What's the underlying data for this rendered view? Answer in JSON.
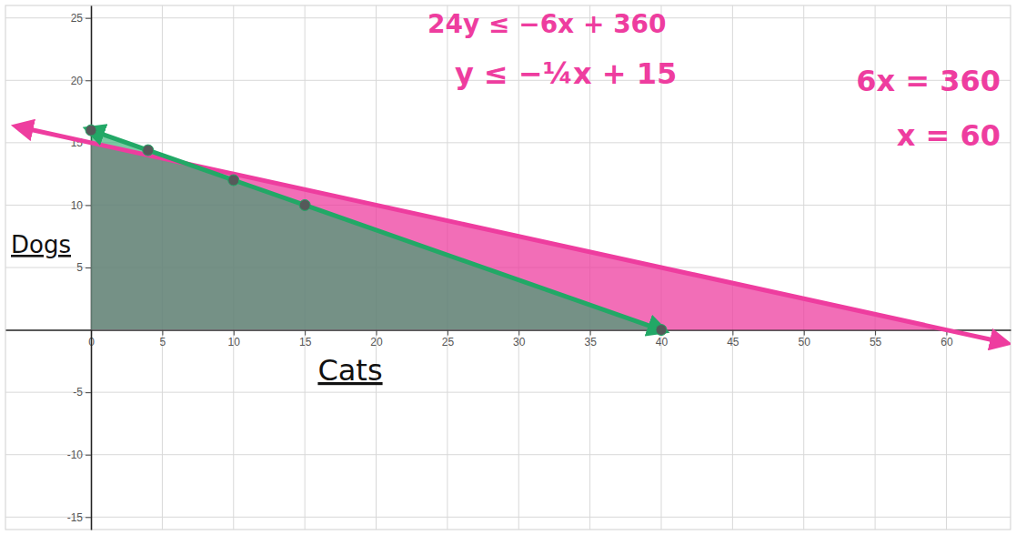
{
  "chart_data": {
    "type": "line",
    "x_label": "Cats",
    "y_label": "Dogs",
    "annotations": [
      "24y ≤ −6x + 360",
      "y ≤ −¼x + 15",
      "6x = 360",
      "x = 60"
    ],
    "xlim": [
      -6,
      64.5
    ],
    "ylim": [
      -16,
      26
    ],
    "xticks": [
      0,
      5,
      10,
      15,
      20,
      25,
      30,
      35,
      40,
      45,
      50,
      55,
      60
    ],
    "yticks": [
      -15,
      -10,
      -5,
      5,
      10,
      15,
      20,
      25
    ],
    "grid": true,
    "series": [
      {
        "type": "area",
        "color": "#ee3d9f",
        "x": [
          -5,
          0,
          60,
          64
        ],
        "values": [
          16.25,
          15,
          0,
          -1
        ]
      },
      {
        "type": "area",
        "color": "#22a866",
        "marker": "circle",
        "x": [
          0,
          4,
          10,
          15,
          40
        ],
        "values": [
          16,
          14.4,
          12,
          10,
          0
        ]
      }
    ]
  }
}
